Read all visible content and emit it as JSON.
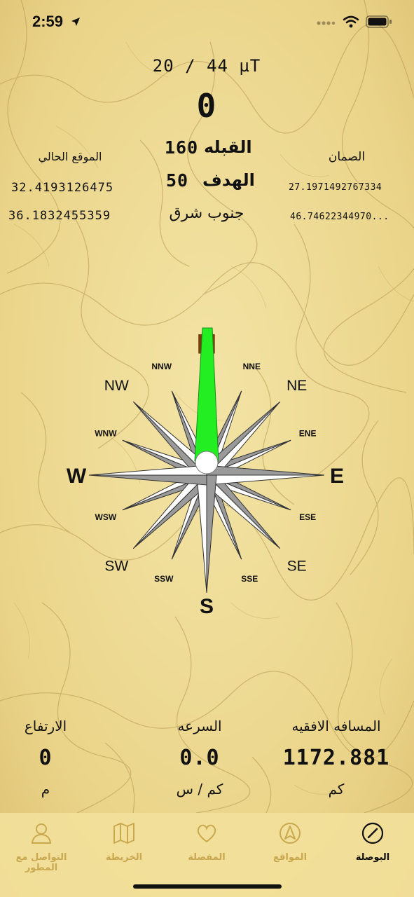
{
  "status_bar": {
    "time": "2:59"
  },
  "header": {
    "magnetic_field": "20 / 44 µT",
    "heading": "0",
    "qibla_label": "القبله",
    "qibla_value": "160",
    "target_label": "الهدف",
    "target_value": "50",
    "direction_text": "جنوب شرق"
  },
  "current_location": {
    "title": "الموقع الحالي",
    "latitude": "32.4193126475",
    "longitude": "36.1832455359"
  },
  "destination": {
    "title": "الصمان",
    "latitude": "27.1971492767334",
    "longitude": "46.74622344970..."
  },
  "compass": {
    "north": "N",
    "south": "S",
    "east": "E",
    "west": "W",
    "ne": "NE",
    "nw": "NW",
    "se": "SE",
    "sw": "SW",
    "nne": "NNE",
    "nnw": "NNW",
    "ene": "ENE",
    "wnw": "WNW",
    "ese": "ESE",
    "wsw": "WSW",
    "sse": "SSE",
    "ssw": "SSW",
    "needle_color": "#22ee22",
    "north_color": "#7a3e0c"
  },
  "stats": {
    "distance": {
      "label": "المسافه الافقيه",
      "value": "1172.881",
      "unit": "كم"
    },
    "speed": {
      "label": "السرعه",
      "value": "0.0",
      "unit": "كم / س"
    },
    "altitude": {
      "label": "الارتفاع",
      "value": "0",
      "unit": "م"
    }
  },
  "tabs": [
    {
      "label": "البوصلة",
      "icon": "compass-icon",
      "active": true
    },
    {
      "label": "المواقع",
      "icon": "navigation-icon",
      "active": false
    },
    {
      "label": "المفضلة",
      "icon": "heart-icon",
      "active": false
    },
    {
      "label": "الخريطة",
      "icon": "map-icon",
      "active": false
    },
    {
      "label": "التواصل مع المطور",
      "icon": "person-icon",
      "active": false
    }
  ]
}
